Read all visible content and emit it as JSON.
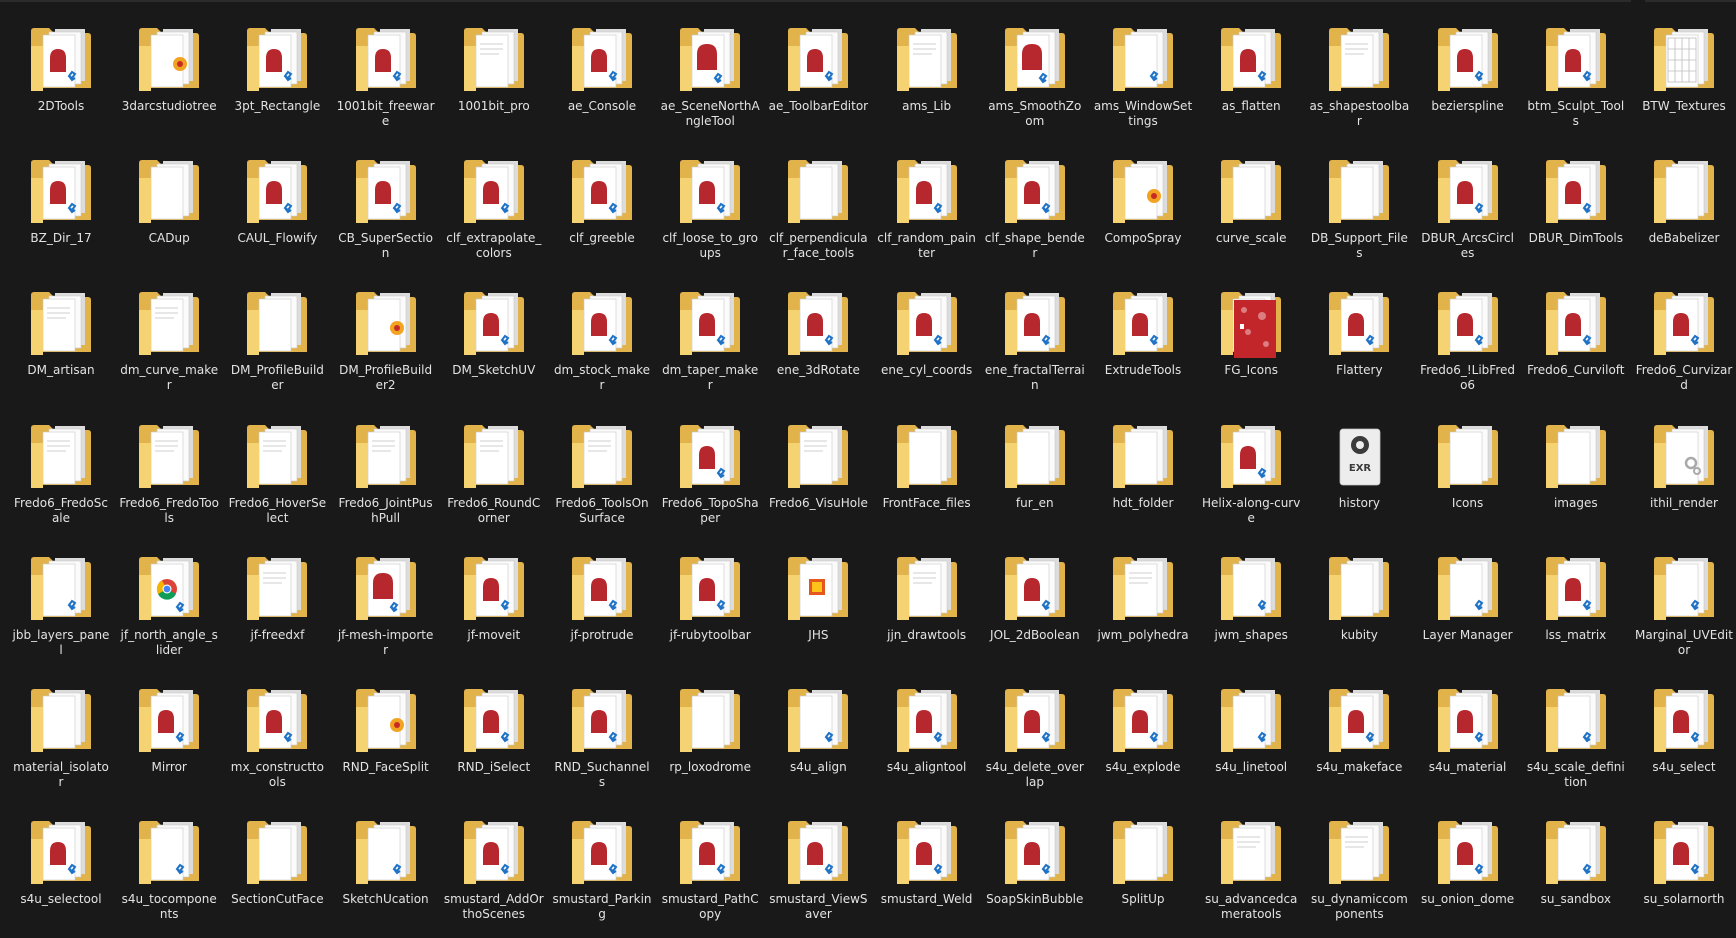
{
  "window": {
    "view": "Large icons"
  },
  "colors": {
    "background": "#191919",
    "label": "#e3e3e3",
    "folder_back": "#e2b34a",
    "folder_front": "#f7d77a",
    "sheet": "#fbfbfb",
    "accent_red": "#b7282e",
    "vs_blue": "#1f73c7"
  },
  "items": [
    {
      "name": "2DTools",
      "icon": "folder-ruby-icon"
    },
    {
      "name": "3darcstudiotree",
      "icon": "folder-sketchup-icon"
    },
    {
      "name": "3pt_Rectangle",
      "icon": "folder-ruby-icon"
    },
    {
      "name": "1001bit_freeware",
      "icon": "folder-ruby-icon"
    },
    {
      "name": "1001bit_pro",
      "icon": "folder-docs-icon"
    },
    {
      "name": "ae_Console",
      "icon": "folder-ruby-icon"
    },
    {
      "name": "ae_SceneNorthAngleTool",
      "icon": "folder-ruby-large-icon"
    },
    {
      "name": "ae_ToolbarEditor",
      "icon": "folder-ruby-icon"
    },
    {
      "name": "ams_Lib",
      "icon": "folder-docs-icon"
    },
    {
      "name": "ams_SmoothZoom",
      "icon": "folder-ruby-large-icon"
    },
    {
      "name": "ams_WindowSettings",
      "icon": "folder-vscode-icon"
    },
    {
      "name": "as_flatten",
      "icon": "folder-ruby-icon"
    },
    {
      "name": "as_shapestoolbar",
      "icon": "folder-docs-icon"
    },
    {
      "name": "bezierspline",
      "icon": "folder-ruby-icon"
    },
    {
      "name": "btm_Sculpt_Tools",
      "icon": "folder-ruby-icon"
    },
    {
      "name": "BTW_Textures",
      "icon": "folder-textures-icon"
    },
    {
      "name": "BZ_Dir_17",
      "icon": "folder-ruby-icon"
    },
    {
      "name": "CADup",
      "icon": "folder-blank-icon"
    },
    {
      "name": "CAUL_Flowify",
      "icon": "folder-ruby-icon"
    },
    {
      "name": "CB_SuperSection",
      "icon": "folder-ruby-icon"
    },
    {
      "name": "clf_extrapolate_colors",
      "icon": "folder-ruby-icon"
    },
    {
      "name": "clf_greeble",
      "icon": "folder-ruby-icon"
    },
    {
      "name": "clf_loose_to_groups",
      "icon": "folder-ruby-icon"
    },
    {
      "name": "clf_perpendicular_face_tools",
      "icon": "folder-blank-icon"
    },
    {
      "name": "clf_random_painter",
      "icon": "folder-ruby-icon"
    },
    {
      "name": "clf_shape_bender",
      "icon": "folder-ruby-icon"
    },
    {
      "name": "CompoSpray",
      "icon": "folder-sketchup-icon"
    },
    {
      "name": "curve_scale",
      "icon": "folder-blank-icon"
    },
    {
      "name": "DB_Support_Files",
      "icon": "folder-blank-icon"
    },
    {
      "name": "DBUR_ArcsCircles",
      "icon": "folder-ruby-icon"
    },
    {
      "name": "DBUR_DimTools",
      "icon": "folder-ruby-icon"
    },
    {
      "name": "deBabelizer",
      "icon": "folder-blank-icon"
    },
    {
      "name": "DM_artisan",
      "icon": "folder-docs-icon"
    },
    {
      "name": "dm_curve_maker",
      "icon": "folder-docs-icon"
    },
    {
      "name": "DM_ProfileBuilder",
      "icon": "folder-blank-icon"
    },
    {
      "name": "DM_ProfileBuilder2",
      "icon": "folder-sketchup-icon"
    },
    {
      "name": "DM_SketchUV",
      "icon": "folder-ruby-icon"
    },
    {
      "name": "dm_stock_maker",
      "icon": "folder-ruby-icon"
    },
    {
      "name": "dm_taper_maker",
      "icon": "folder-ruby-icon"
    },
    {
      "name": "ene_3dRotate",
      "icon": "folder-ruby-icon"
    },
    {
      "name": "ene_cyl_coords",
      "icon": "folder-ruby-icon"
    },
    {
      "name": "ene_fractalTerrain",
      "icon": "folder-ruby-icon"
    },
    {
      "name": "ExtrudeTools",
      "icon": "folder-ruby-icon"
    },
    {
      "name": "FG_Icons",
      "icon": "folder-icons-icon"
    },
    {
      "name": "Flattery",
      "icon": "folder-ruby-icon"
    },
    {
      "name": "Fredo6_!LibFredo6",
      "icon": "folder-ruby-icon"
    },
    {
      "name": "Fredo6_Curviloft",
      "icon": "folder-ruby-icon"
    },
    {
      "name": "Fredo6_Curvizard",
      "icon": "folder-ruby-icon"
    },
    {
      "name": "Fredo6_FredoScale",
      "icon": "folder-docs-icon"
    },
    {
      "name": "Fredo6_FredoTools",
      "icon": "folder-docs-icon"
    },
    {
      "name": "Fredo6_HoverSelect",
      "icon": "folder-docs-icon"
    },
    {
      "name": "Fredo6_JointPushPull",
      "icon": "folder-docs-icon"
    },
    {
      "name": "Fredo6_RoundCorner",
      "icon": "folder-docs-icon"
    },
    {
      "name": "Fredo6_ToolsOnSurface",
      "icon": "folder-docs-icon"
    },
    {
      "name": "Fredo6_TopoShaper",
      "icon": "folder-ruby-icon"
    },
    {
      "name": "Fredo6_VisuHole",
      "icon": "folder-docs-icon"
    },
    {
      "name": "FrontFace_files",
      "icon": "folder-blank-icon"
    },
    {
      "name": "fur_en",
      "icon": "folder-blank-icon"
    },
    {
      "name": "hdt_folder",
      "icon": "folder-blank-icon"
    },
    {
      "name": "Helix-along-curve",
      "icon": "folder-ruby-icon"
    },
    {
      "name": "history",
      "icon": "folder-exr-icon"
    },
    {
      "name": "Icons",
      "icon": "folder-blank-icon"
    },
    {
      "name": "images",
      "icon": "folder-blank-icon"
    },
    {
      "name": "ithil_render",
      "icon": "folder-gears-icon"
    },
    {
      "name": "jbb_layers_panel",
      "icon": "folder-vscode-icon"
    },
    {
      "name": "jf_north_angle_slider",
      "icon": "folder-chrome-icon"
    },
    {
      "name": "jf-freedxf",
      "icon": "folder-docs-icon"
    },
    {
      "name": "jf-mesh-importer",
      "icon": "folder-ruby-large-icon"
    },
    {
      "name": "jf-moveit",
      "icon": "folder-ruby-icon"
    },
    {
      "name": "jf-protrude",
      "icon": "folder-ruby-icon"
    },
    {
      "name": "jf-rubytoolbar",
      "icon": "folder-ruby-icon"
    },
    {
      "name": "JHS",
      "icon": "folder-image-icon"
    },
    {
      "name": "jjn_drawtools",
      "icon": "folder-docs-icon"
    },
    {
      "name": "JOL_2dBoolean",
      "icon": "folder-ruby-icon"
    },
    {
      "name": "jwm_polyhedra",
      "icon": "folder-docs-icon"
    },
    {
      "name": "jwm_shapes",
      "icon": "folder-vscode-icon"
    },
    {
      "name": "kubity",
      "icon": "folder-blank-icon"
    },
    {
      "name": "Layer Manager",
      "icon": "folder-vscode-icon"
    },
    {
      "name": "lss_matrix",
      "icon": "folder-ruby-icon"
    },
    {
      "name": "Marginal_UVEditor",
      "icon": "folder-vscode-icon"
    },
    {
      "name": "material_isolator",
      "icon": "folder-blank-icon"
    },
    {
      "name": "Mirror",
      "icon": "folder-ruby-icon"
    },
    {
      "name": "mx_constructtools",
      "icon": "folder-ruby-icon"
    },
    {
      "name": "RND_FaceSplit",
      "icon": "folder-sketchup-icon"
    },
    {
      "name": "RND_iSelect",
      "icon": "folder-ruby-icon"
    },
    {
      "name": "RND_Suchannels",
      "icon": "folder-ruby-icon"
    },
    {
      "name": "rp_loxodrome",
      "icon": "folder-blank-icon"
    },
    {
      "name": "s4u_align",
      "icon": "folder-vscode-icon"
    },
    {
      "name": "s4u_aligntool",
      "icon": "folder-ruby-icon"
    },
    {
      "name": "s4u_delete_overlap",
      "icon": "folder-ruby-icon"
    },
    {
      "name": "s4u_explode",
      "icon": "folder-ruby-icon"
    },
    {
      "name": "s4u_linetool",
      "icon": "folder-vscode-icon"
    },
    {
      "name": "s4u_makeface",
      "icon": "folder-ruby-icon"
    },
    {
      "name": "s4u_material",
      "icon": "folder-ruby-icon"
    },
    {
      "name": "s4u_scale_definition",
      "icon": "folder-vscode-icon"
    },
    {
      "name": "s4u_select",
      "icon": "folder-ruby-icon"
    },
    {
      "name": "s4u_selectool",
      "icon": "folder-ruby-icon"
    },
    {
      "name": "s4u_tocomponents",
      "icon": "folder-vscode-icon"
    },
    {
      "name": "SectionCutFace",
      "icon": "folder-blank-icon"
    },
    {
      "name": "SketchUcation",
      "icon": "folder-vscode-icon"
    },
    {
      "name": "smustard_AddOrthoScenes",
      "icon": "folder-ruby-icon"
    },
    {
      "name": "smustard_Parking",
      "icon": "folder-ruby-icon"
    },
    {
      "name": "smustard_PathCopy",
      "icon": "folder-ruby-icon"
    },
    {
      "name": "smustard_ViewSaver",
      "icon": "folder-ruby-icon"
    },
    {
      "name": "smustard_Weld",
      "icon": "folder-ruby-icon"
    },
    {
      "name": "SoapSkinBubble",
      "icon": "folder-ruby-icon"
    },
    {
      "name": "SplitUp",
      "icon": "folder-blank-icon"
    },
    {
      "name": "su_advancedcameratools",
      "icon": "folder-docs-icon"
    },
    {
      "name": "su_dynamiccomponents",
      "icon": "folder-docs-icon"
    },
    {
      "name": "su_onion_dome",
      "icon": "folder-ruby-icon"
    },
    {
      "name": "su_sandbox",
      "icon": "folder-vscode-icon"
    },
    {
      "name": "su_solarnorth",
      "icon": "folder-ruby-icon"
    }
  ]
}
